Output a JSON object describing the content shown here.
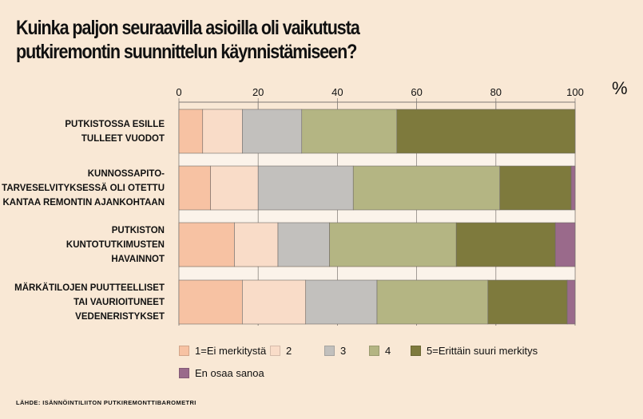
{
  "title": {
    "line1": "Kuinka paljon seuraavilla asioilla oli vaikutusta",
    "line2": "putkiremontin suunnittelun käynnistämiseen?"
  },
  "unit": "%",
  "source": "LÄHDE: ISÄNNÖINTILIITON PUTKIREMONTTIBAROMETRI",
  "colors": {
    "s1": "#f7c2a3",
    "s2": "#f9dcc8",
    "s3": "#c2c0bd",
    "s4": "#b4b583",
    "s5": "#7e7a3d",
    "s6": "#9a6a8b"
  },
  "chart_data": {
    "type": "bar",
    "orientation": "horizontal",
    "stacked": true,
    "xlim": [
      0,
      100
    ],
    "xticks": [
      "0",
      "20",
      "40",
      "60",
      "80",
      "100"
    ],
    "categories": [
      [
        "PUTKISTOSSA ESILLE",
        "TULLEET VUODOT"
      ],
      [
        "KUNNOSSAPITO-",
        "TARVESELVITYKSESSÄ OLI OTETTU",
        "KANTAA REMONTIN AJANKOHTAAN"
      ],
      [
        "PUTKISTON",
        "KUNTOTUTKIMUSTEN",
        "HAVAINNOT"
      ],
      [
        "MÄRKÄTILOJEN PUUTTEELLISET",
        "TAI VAURIOITUNEET",
        "VEDENERISTYKSET"
      ]
    ],
    "series": [
      {
        "name": "1=Ei merkitystä",
        "values": [
          6,
          8,
          14,
          16
        ]
      },
      {
        "name": "2",
        "values": [
          10,
          12,
          11,
          16
        ]
      },
      {
        "name": "3",
        "values": [
          15,
          24,
          13,
          18
        ]
      },
      {
        "name": "4",
        "values": [
          24,
          37,
          32,
          28
        ]
      },
      {
        "name": "5=Erittäin suuri merkitys",
        "values": [
          45,
          18,
          25,
          20
        ]
      },
      {
        "name": "En osaa sanoa",
        "values": [
          0,
          1,
          5,
          2
        ]
      }
    ],
    "grid": true,
    "legend": "bottom"
  }
}
